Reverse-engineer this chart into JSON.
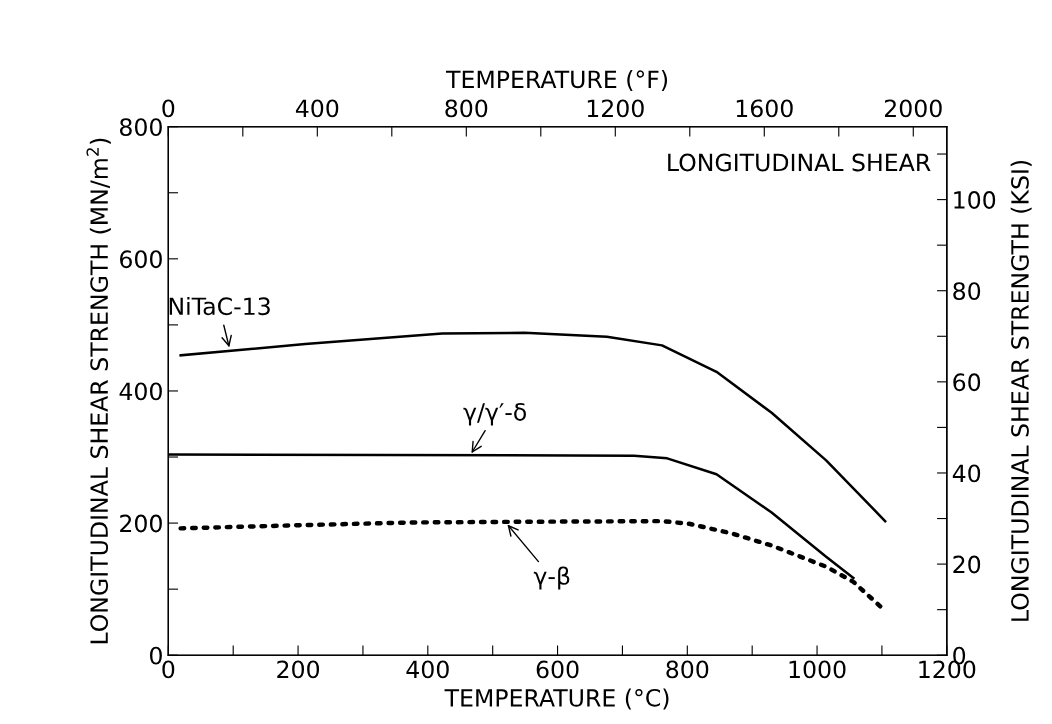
{
  "chart_data": {
    "type": "line",
    "xlabel": "TEMPERATURE (°C)",
    "ylabel": "LONGITUDINAL SHEAR STRENGTH (MN/m$^{2}$)",
    "x2label": "TEMPERATURE (°F)",
    "y2label": "LONGITUDINAL SHEAR STRENGTH (KSI)",
    "xlim": [
      0,
      1200
    ],
    "xticks": [
      0,
      {
        "value": 100,
        "label": null
      },
      200,
      {
        "value": 300,
        "label": null
      },
      400,
      {
        "value": 500,
        "label": null
      },
      600,
      {
        "value": 700,
        "label": null
      },
      800,
      {
        "value": 900,
        "label": null
      },
      1000,
      {
        "value": 1100,
        "label": null
      },
      1200
    ],
    "ylim": [
      0,
      800
    ],
    "yticks": [
      0,
      {
        "value": 100,
        "label": null
      },
      200,
      {
        "value": 300,
        "label": null
      },
      400,
      {
        "value": 500,
        "label": null
      },
      600,
      {
        "value": 700,
        "label": null
      },
      800
    ],
    "x2lim": [
      0,
      2090
    ],
    "x2ticks": [
      0,
      {
        "value": 200,
        "label": null
      },
      400,
      {
        "value": 600,
        "label": null
      },
      800,
      {
        "value": 1000,
        "label": null
      },
      1200,
      {
        "value": 1400,
        "label": null
      },
      1600,
      {
        "value": 1800,
        "label": null
      },
      2000
    ],
    "y2lim": [
      0,
      116
    ],
    "y2ticks": [
      0,
      {
        "value": 10,
        "label": null
      },
      20,
      {
        "value": 30,
        "label": null
      },
      40,
      {
        "value": 50,
        "label": null
      },
      60,
      {
        "value": 70,
        "label": null
      },
      80,
      {
        "value": 90,
        "label": null
      },
      100,
      {
        "value": 110,
        "label": null
      }
    ],
    "series": [
      {
        "color": "#000000",
        "line_style": "solid",
        "x": [
          19,
          211,
          422,
          549,
          676,
          761,
          845,
          930,
          1014,
          1105
        ],
        "values": [
          454,
          471,
          487,
          488,
          482,
          469,
          429,
          367,
          295,
          203
        ]
      },
      {
        "color": "#000000",
        "line_style": "solid",
        "x": [
          0,
          718,
          769,
          845,
          930,
          1014,
          1056
        ],
        "values": [
          304,
          302,
          298,
          274,
          216,
          149,
          117
        ]
      },
      {
        "color": "#000000",
        "line_style": "dotted",
        "x": [
          19,
          211,
          380,
          549,
          761,
          803,
          870,
          930,
          1014,
          1056,
          1103
        ],
        "values": [
          192,
          197,
          201,
          202,
          203,
          199,
          184,
          166,
          134,
          111,
          69
        ]
      }
    ],
    "annotations": [
      "LONGITUDINAL SHEAR",
      {
        "text": "NiTaC-13",
        "x": 95,
        "y": 462
      },
      {
        "text": "γ/γ′-δ",
        "x": 465,
        "y": 302
      },
      {
        "text": "γ-β",
        "x": 520,
        "y": 201
      }
    ],
    "marker": "none",
    "grid": false,
    "legend": false
  }
}
